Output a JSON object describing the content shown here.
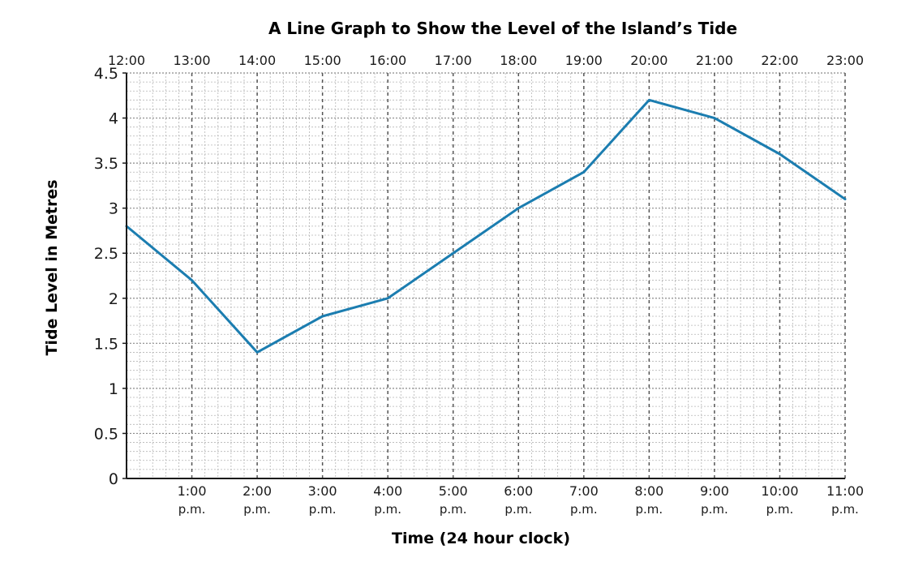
{
  "chart_data": {
    "type": "line",
    "title": "A Line Graph to Show the Level of the Island’s Tide",
    "xlabel": "Time (24 hour clock)",
    "ylabel": "Tide Level in Metres",
    "x_top_labels": [
      "12:00",
      "13:00",
      "14:00",
      "15:00",
      "16:00",
      "17:00",
      "18:00",
      "19:00",
      "20:00",
      "21:00",
      "22:00",
      "23:00"
    ],
    "x_bottom_labels": [
      {
        "time": "1:00",
        "suffix": "p.m."
      },
      {
        "time": "2:00",
        "suffix": "p.m."
      },
      {
        "time": "3:00",
        "suffix": "p.m."
      },
      {
        "time": "4:00",
        "suffix": "p.m."
      },
      {
        "time": "5:00",
        "suffix": "p.m."
      },
      {
        "time": "6:00",
        "suffix": "p.m."
      },
      {
        "time": "7:00",
        "suffix": "p.m."
      },
      {
        "time": "8:00",
        "suffix": "p.m."
      },
      {
        "time": "9:00",
        "suffix": "p.m."
      },
      {
        "time": "10:00",
        "suffix": "p.m."
      },
      {
        "time": "11:00",
        "suffix": "p.m."
      }
    ],
    "y_ticks": [
      "0",
      "0.5",
      "1",
      "1.5",
      "2",
      "2.5",
      "3",
      "3.5",
      "4",
      "4.5"
    ],
    "ylim": [
      0,
      4.5
    ],
    "minor_step": 0.1,
    "grid": true,
    "line_color": "#1b7db0",
    "series": [
      {
        "x": [
          "12:00",
          "13:00",
          "14:00",
          "15:00",
          "16:00",
          "17:00",
          "18:00",
          "19:00",
          "20:00",
          "21:00",
          "22:00",
          "23:00"
        ],
        "values": [
          2.8,
          2.2,
          1.4,
          1.8,
          2.0,
          2.5,
          3.0,
          3.4,
          4.2,
          4.0,
          3.6,
          3.1
        ]
      }
    ]
  }
}
